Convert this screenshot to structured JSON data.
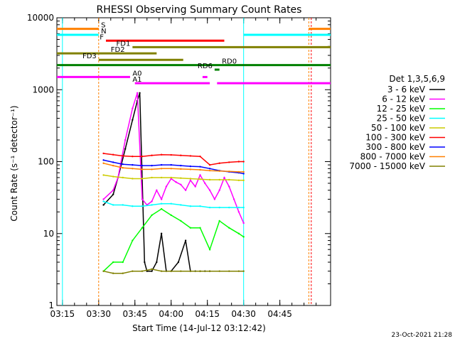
{
  "chart_data": {
    "type": "line",
    "title": "RHESSI Observing Summary Count Rates",
    "xlabel": "Start Time (14-Jul-12 03:12:42)",
    "ylabel": "Count Rate (s⁻¹ detector⁻¹)",
    "yscale": "log",
    "ylim": [
      1,
      10000
    ],
    "xlim_min": [
      192.7,
      306
    ],
    "x_tick_labels": [
      "03:15",
      "03:30",
      "03:45",
      "04:00",
      "04:15",
      "04:30",
      "04:45"
    ],
    "x_tick_values_min": [
      195,
      210,
      225,
      240,
      255,
      270,
      285
    ],
    "y_tick_labels": [
      "1",
      "10",
      "100",
      "1000",
      "10000"
    ],
    "y_tick_values": [
      1,
      10,
      100,
      1000,
      10000
    ],
    "legend_title": "Det 1,3,5,6,9",
    "legend_placement": "right",
    "timestamp": "23-Oct-2021 21:28",
    "series": [
      {
        "name": "3 - 6 keV",
        "color": "#000000",
        "x": [
          212,
          216,
          218,
          221,
          224,
          226,
          227,
          229,
          230,
          232,
          234,
          236,
          238,
          240,
          243,
          246,
          248,
          250,
          252,
          254,
          256
        ],
        "y": [
          25,
          35,
          60,
          150,
          380,
          700,
          900,
          4,
          3,
          3,
          4,
          10,
          3,
          3,
          4,
          8,
          3,
          3,
          3,
          3,
          3
        ]
      },
      {
        "name": "6 - 12 keV",
        "color": "#ff00ff",
        "x": [
          212,
          216,
          218,
          221,
          224,
          226,
          228,
          230,
          232,
          234,
          236,
          238,
          240,
          242,
          244,
          246,
          248,
          250,
          252,
          254,
          256,
          258,
          260,
          262,
          264,
          266,
          268,
          270
        ],
        "y": [
          30,
          40,
          60,
          200,
          550,
          900,
          30,
          25,
          28,
          40,
          30,
          45,
          58,
          52,
          48,
          40,
          55,
          45,
          65,
          50,
          40,
          30,
          40,
          60,
          45,
          30,
          20,
          14
        ]
      },
      {
        "name": "12 - 25 keV",
        "color": "#00ff00",
        "x": [
          212,
          216,
          220,
          224,
          228,
          232,
          236,
          240,
          244,
          248,
          252,
          256,
          260,
          264,
          268,
          270
        ],
        "y": [
          3,
          4,
          4,
          8,
          12,
          18,
          22,
          18,
          15,
          12,
          12,
          6,
          15,
          12,
          10,
          9
        ]
      },
      {
        "name": "25 - 50 keV",
        "color": "#00ffff",
        "x": [
          212,
          216,
          220,
          224,
          228,
          232,
          236,
          240,
          244,
          248,
          252,
          256,
          260,
          264,
          268,
          270
        ],
        "y": [
          28,
          25,
          25,
          24,
          24,
          25,
          26,
          26,
          25,
          24,
          24,
          23,
          23,
          23,
          23,
          23
        ]
      },
      {
        "name": "50 - 100 keV",
        "color": "#cccc00",
        "x": [
          212,
          216,
          220,
          224,
          228,
          232,
          236,
          240,
          244,
          248,
          252,
          256,
          260,
          264,
          268,
          270
        ],
        "y": [
          65,
          62,
          60,
          58,
          58,
          60,
          60,
          60,
          59,
          58,
          57,
          56,
          56,
          56,
          55,
          55
        ]
      },
      {
        "name": "100 - 300 keV",
        "color": "#ff0000",
        "x": [
          212,
          216,
          220,
          224,
          228,
          232,
          236,
          240,
          244,
          248,
          252,
          256,
          260,
          264,
          268,
          270
        ],
        "y": [
          130,
          125,
          120,
          118,
          118,
          122,
          125,
          124,
          122,
          120,
          118,
          90,
          95,
          98,
          100,
          100
        ]
      },
      {
        "name": "300 - 800 keV",
        "color": "#0000ff",
        "x": [
          212,
          216,
          220,
          224,
          228,
          232,
          236,
          240,
          244,
          248,
          252,
          256,
          260,
          264,
          268,
          270
        ],
        "y": [
          105,
          98,
          92,
          90,
          88,
          88,
          90,
          90,
          88,
          86,
          85,
          80,
          75,
          72,
          70,
          68
        ]
      },
      {
        "name": "800 - 7000 keV",
        "color": "#ff8000",
        "x": [
          212,
          216,
          220,
          224,
          228,
          232,
          236,
          240,
          244,
          248,
          252,
          256,
          260,
          264,
          268,
          270
        ],
        "y": [
          95,
          88,
          82,
          80,
          78,
          78,
          80,
          80,
          79,
          78,
          77,
          75,
          74,
          73,
          72,
          72
        ]
      },
      {
        "name": "7000 - 15000 keV",
        "color": "#808000",
        "x": [
          212,
          216,
          220,
          224,
          228,
          232,
          236,
          240,
          244,
          248,
          252,
          256,
          260,
          264,
          268,
          270
        ],
        "y": [
          3,
          2.8,
          2.8,
          3,
          3,
          3.2,
          3,
          3,
          3,
          3,
          3,
          3,
          3,
          3,
          3,
          3
        ]
      }
    ],
    "flag_bars": [
      {
        "label": "S",
        "color": "#ff8000",
        "segments": [
          [
            192.7,
            210
          ],
          [
            297,
            306
          ]
        ]
      },
      {
        "label": "N",
        "color": "#00ffff",
        "segments": [
          [
            192.7,
            210
          ],
          [
            270,
            306
          ]
        ]
      },
      {
        "label": "F",
        "color": "#ff0000",
        "segments": [
          [
            213,
            262
          ]
        ]
      },
      {
        "label": "FD1",
        "color": "#808000",
        "segments": [
          [
            224,
            306
          ]
        ]
      },
      {
        "label": "FD2",
        "color": "#808000",
        "segments": [
          [
            192.7,
            234
          ]
        ]
      },
      {
        "label": "FD3",
        "color": "#808000",
        "segments": [
          [
            210,
            245
          ]
        ]
      },
      {
        "label": "RD0",
        "color": "#008000",
        "segments": [
          [
            192.7,
            306
          ]
        ]
      },
      {
        "label": "RD6",
        "color": "#008000",
        "segments": [
          [
            258,
            260
          ]
        ]
      },
      {
        "label": "A0",
        "color": "#ff00ff",
        "segments": [
          [
            192.7,
            223
          ],
          [
            253,
            255
          ]
        ]
      },
      {
        "label": "A1",
        "color": "#ff00ff",
        "segments": [
          [
            225,
            256
          ],
          [
            259,
            306
          ]
        ]
      }
    ],
    "vertical_markers": [
      {
        "color": "#00ffff",
        "x": [
          195,
          270
        ]
      },
      {
        "color": "#ff8000",
        "x": [
          210,
          297
        ]
      },
      {
        "color": "#ff0000",
        "x": [
          298
        ]
      }
    ]
  }
}
